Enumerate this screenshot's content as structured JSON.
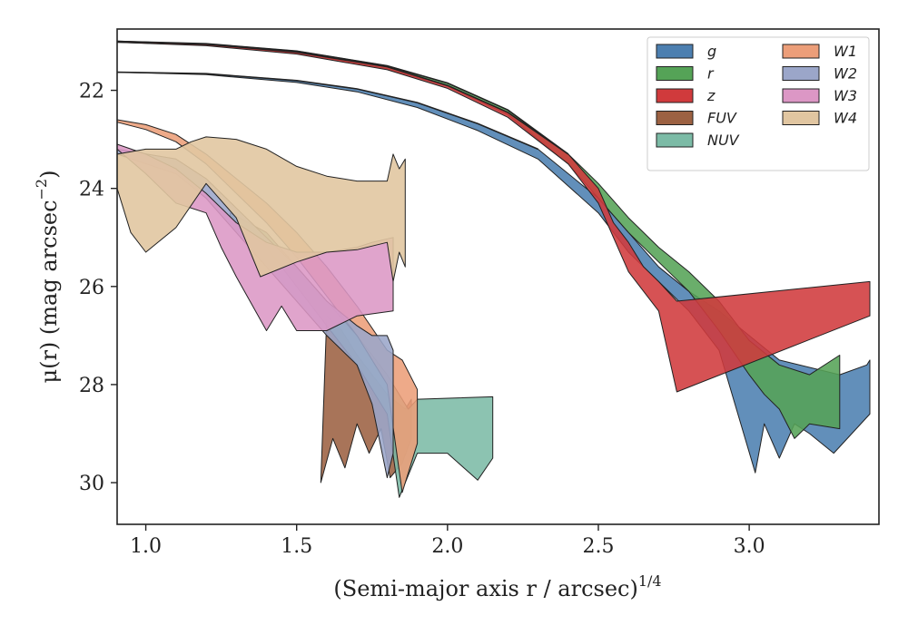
{
  "chart_data": {
    "type": "area",
    "xlabel": "(Semi-major axis r / arcsec)",
    "xlabel_exponent": "1/4",
    "ylabel": "μ(r) (mag arcsec",
    "ylabel_exponent": "−2",
    "ylabel_close": ")",
    "xlim": [
      0.905,
      3.43
    ],
    "ylim": [
      30.85,
      20.75
    ],
    "y_inverted": true,
    "xticks": [
      1.0,
      1.5,
      2.0,
      2.5,
      3.0
    ],
    "xtick_labels": [
      "1.0",
      "1.5",
      "2.0",
      "2.5",
      "3.0"
    ],
    "yticks": [
      22,
      24,
      26,
      28,
      30
    ],
    "ytick_labels": [
      "22",
      "24",
      "26",
      "28",
      "30"
    ],
    "grid": false,
    "legend_position": "top-right",
    "legend_columns": 2,
    "series": [
      {
        "name": "g",
        "color": "#4c7fb0",
        "upper": [
          [
            0.905,
            21.63
          ],
          [
            1.2,
            21.66
          ],
          [
            1.5,
            21.8
          ],
          [
            1.7,
            21.97
          ],
          [
            1.9,
            22.25
          ],
          [
            2.1,
            22.68
          ],
          [
            2.3,
            23.2
          ],
          [
            2.5,
            24.2
          ],
          [
            2.6,
            24.9
          ],
          [
            2.7,
            25.6
          ],
          [
            2.8,
            26.1
          ],
          [
            2.9,
            26.5
          ],
          [
            3.0,
            27.0
          ],
          [
            3.1,
            27.5
          ],
          [
            3.3,
            27.8
          ],
          [
            3.39,
            27.6
          ],
          [
            3.4,
            27.5
          ]
        ],
        "lower": [
          [
            0.905,
            21.63
          ],
          [
            1.2,
            21.68
          ],
          [
            1.5,
            21.84
          ],
          [
            1.7,
            22.03
          ],
          [
            1.9,
            22.35
          ],
          [
            2.1,
            22.82
          ],
          [
            2.3,
            23.4
          ],
          [
            2.5,
            24.5
          ],
          [
            2.6,
            25.3
          ],
          [
            2.7,
            25.9
          ],
          [
            2.8,
            26.5
          ],
          [
            2.9,
            27.3
          ],
          [
            3.02,
            29.8
          ],
          [
            3.05,
            28.8
          ],
          [
            3.1,
            29.5
          ],
          [
            3.15,
            28.8
          ],
          [
            3.2,
            29.0
          ],
          [
            3.28,
            29.4
          ],
          [
            3.4,
            28.6
          ]
        ]
      },
      {
        "name": "r",
        "color": "#55a357",
        "upper": [
          [
            0.905,
            21.0
          ],
          [
            1.2,
            21.05
          ],
          [
            1.5,
            21.2
          ],
          [
            1.8,
            21.5
          ],
          [
            2.0,
            21.85
          ],
          [
            2.2,
            22.4
          ],
          [
            2.4,
            23.3
          ],
          [
            2.5,
            23.9
          ],
          [
            2.6,
            24.6
          ],
          [
            2.7,
            25.2
          ],
          [
            2.8,
            25.7
          ],
          [
            2.9,
            26.3
          ],
          [
            3.0,
            27.1
          ],
          [
            3.1,
            27.6
          ],
          [
            3.2,
            27.8
          ],
          [
            3.3,
            27.4
          ]
        ],
        "lower": [
          [
            0.905,
            21.02
          ],
          [
            1.2,
            21.08
          ],
          [
            1.5,
            21.24
          ],
          [
            1.8,
            21.56
          ],
          [
            2.0,
            21.92
          ],
          [
            2.2,
            22.5
          ],
          [
            2.4,
            23.5
          ],
          [
            2.5,
            24.2
          ],
          [
            2.6,
            24.9
          ],
          [
            2.7,
            25.5
          ],
          [
            2.8,
            26.1
          ],
          [
            2.9,
            26.9
          ],
          [
            3.0,
            27.8
          ],
          [
            3.05,
            28.2
          ],
          [
            3.1,
            28.5
          ],
          [
            3.15,
            29.1
          ],
          [
            3.2,
            28.8
          ],
          [
            3.3,
            28.9
          ]
        ]
      },
      {
        "name": "z",
        "color": "#d03a3c",
        "upper": [
          [
            0.905,
            21.0
          ],
          [
            1.2,
            21.06
          ],
          [
            1.5,
            21.22
          ],
          [
            1.8,
            21.52
          ],
          [
            2.0,
            21.9
          ],
          [
            2.2,
            22.45
          ],
          [
            2.4,
            23.3
          ],
          [
            2.5,
            24.0
          ],
          [
            2.55,
            24.7
          ],
          [
            2.6,
            25.1
          ],
          [
            2.65,
            25.6
          ],
          [
            2.7,
            25.9
          ],
          [
            2.76,
            26.3
          ],
          [
            3.4,
            25.9
          ]
        ],
        "lower": [
          [
            0.905,
            21.02
          ],
          [
            1.2,
            21.09
          ],
          [
            1.5,
            21.26
          ],
          [
            1.8,
            21.58
          ],
          [
            2.0,
            21.96
          ],
          [
            2.2,
            22.55
          ],
          [
            2.4,
            23.5
          ],
          [
            2.5,
            24.3
          ],
          [
            2.55,
            25.0
          ],
          [
            2.6,
            25.7
          ],
          [
            2.65,
            26.1
          ],
          [
            2.7,
            26.5
          ],
          [
            2.76,
            28.15
          ],
          [
            3.4,
            26.6
          ]
        ]
      },
      {
        "name": "FUV",
        "color": "#9c6142",
        "upper": [
          [
            1.6,
            26.6
          ],
          [
            1.65,
            26.9
          ],
          [
            1.7,
            27.4
          ],
          [
            1.75,
            27.8
          ],
          [
            1.8,
            28.2
          ],
          [
            1.86,
            28.5
          ],
          [
            1.88,
            28.3
          ]
        ],
        "lower": [
          [
            1.58,
            30.0
          ],
          [
            1.62,
            29.1
          ],
          [
            1.66,
            29.7
          ],
          [
            1.7,
            28.8
          ],
          [
            1.74,
            29.4
          ],
          [
            1.78,
            28.9
          ],
          [
            1.81,
            29.9
          ],
          [
            1.85,
            29.6
          ],
          [
            1.88,
            29.1
          ]
        ]
      },
      {
        "name": "NUV",
        "color": "#7cbba6",
        "upper": [
          [
            1.28,
            24.5
          ],
          [
            1.4,
            24.9
          ],
          [
            1.5,
            25.6
          ],
          [
            1.6,
            26.3
          ],
          [
            1.7,
            27.0
          ],
          [
            1.8,
            27.8
          ],
          [
            1.87,
            28.5
          ],
          [
            1.9,
            28.3
          ],
          [
            2.15,
            28.25
          ]
        ],
        "lower": [
          [
            1.28,
            24.6
          ],
          [
            1.4,
            25.2
          ],
          [
            1.5,
            26.0
          ],
          [
            1.6,
            26.8
          ],
          [
            1.7,
            27.6
          ],
          [
            1.8,
            28.6
          ],
          [
            1.84,
            30.3
          ],
          [
            1.9,
            29.4
          ],
          [
            2.0,
            29.4
          ],
          [
            2.1,
            29.95
          ],
          [
            2.15,
            29.5
          ]
        ]
      },
      {
        "name": "W1",
        "color": "#ec9e79",
        "upper": [
          [
            0.905,
            22.6
          ],
          [
            1.0,
            22.7
          ],
          [
            1.1,
            22.9
          ],
          [
            1.2,
            23.3
          ],
          [
            1.3,
            23.8
          ],
          [
            1.4,
            24.3
          ],
          [
            1.5,
            24.9
          ],
          [
            1.6,
            25.6
          ],
          [
            1.7,
            26.4
          ],
          [
            1.8,
            27.3
          ],
          [
            1.85,
            27.5
          ],
          [
            1.9,
            28.1
          ]
        ],
        "lower": [
          [
            0.905,
            22.65
          ],
          [
            1.0,
            22.8
          ],
          [
            1.1,
            23.05
          ],
          [
            1.2,
            23.5
          ],
          [
            1.3,
            24.1
          ],
          [
            1.4,
            24.7
          ],
          [
            1.5,
            25.4
          ],
          [
            1.6,
            26.2
          ],
          [
            1.7,
            27.0
          ],
          [
            1.8,
            28.0
          ],
          [
            1.85,
            30.2
          ],
          [
            1.9,
            29.2
          ]
        ]
      },
      {
        "name": "W2",
        "color": "#9ba6c9",
        "upper": [
          [
            0.905,
            23.2
          ],
          [
            1.1,
            23.4
          ],
          [
            1.2,
            23.8
          ],
          [
            1.3,
            24.4
          ],
          [
            1.4,
            25.0
          ],
          [
            1.5,
            25.6
          ],
          [
            1.6,
            26.3
          ],
          [
            1.7,
            26.8
          ],
          [
            1.75,
            27.0
          ],
          [
            1.8,
            27.0
          ],
          [
            1.82,
            27.3
          ]
        ],
        "lower": [
          [
            0.905,
            23.3
          ],
          [
            1.1,
            23.7
          ],
          [
            1.2,
            24.2
          ],
          [
            1.3,
            24.9
          ],
          [
            1.4,
            25.6
          ],
          [
            1.5,
            26.3
          ],
          [
            1.6,
            27.0
          ],
          [
            1.7,
            27.6
          ],
          [
            1.75,
            28.4
          ],
          [
            1.8,
            29.9
          ],
          [
            1.82,
            29.4
          ]
        ]
      },
      {
        "name": "W3",
        "color": "#dc97c5",
        "upper": [
          [
            0.905,
            23.1
          ],
          [
            1.0,
            23.3
          ],
          [
            1.1,
            23.6
          ],
          [
            1.2,
            24.1
          ],
          [
            1.3,
            24.7
          ],
          [
            1.4,
            25.1
          ],
          [
            1.5,
            25.3
          ],
          [
            1.6,
            25.3
          ],
          [
            1.7,
            25.2
          ],
          [
            1.75,
            25.1
          ],
          [
            1.82,
            25.0
          ]
        ],
        "lower": [
          [
            0.905,
            23.2
          ],
          [
            1.0,
            23.7
          ],
          [
            1.1,
            24.3
          ],
          [
            1.2,
            24.5
          ],
          [
            1.25,
            25.2
          ],
          [
            1.3,
            25.8
          ],
          [
            1.4,
            26.9
          ],
          [
            1.45,
            26.4
          ],
          [
            1.5,
            26.9
          ],
          [
            1.6,
            26.9
          ],
          [
            1.7,
            26.6
          ],
          [
            1.82,
            26.5
          ]
        ]
      },
      {
        "name": "W4",
        "color": "#e1c6a1",
        "upper": [
          [
            0.905,
            23.3
          ],
          [
            1.0,
            23.2
          ],
          [
            1.1,
            23.2
          ],
          [
            1.15,
            23.05
          ],
          [
            1.2,
            22.95
          ],
          [
            1.3,
            23.0
          ],
          [
            1.4,
            23.2
          ],
          [
            1.5,
            23.55
          ],
          [
            1.6,
            23.75
          ],
          [
            1.7,
            23.85
          ],
          [
            1.8,
            23.85
          ],
          [
            1.82,
            23.3
          ],
          [
            1.84,
            23.6
          ],
          [
            1.86,
            23.4
          ]
        ],
        "lower": [
          [
            0.905,
            24.0
          ],
          [
            0.95,
            24.9
          ],
          [
            1.0,
            25.3
          ],
          [
            1.1,
            24.8
          ],
          [
            1.2,
            23.9
          ],
          [
            1.3,
            24.6
          ],
          [
            1.38,
            25.8
          ],
          [
            1.5,
            25.5
          ],
          [
            1.6,
            25.3
          ],
          [
            1.7,
            25.25
          ],
          [
            1.8,
            25.1
          ],
          [
            1.82,
            25.9
          ],
          [
            1.84,
            25.3
          ],
          [
            1.86,
            25.6
          ]
        ]
      }
    ]
  }
}
